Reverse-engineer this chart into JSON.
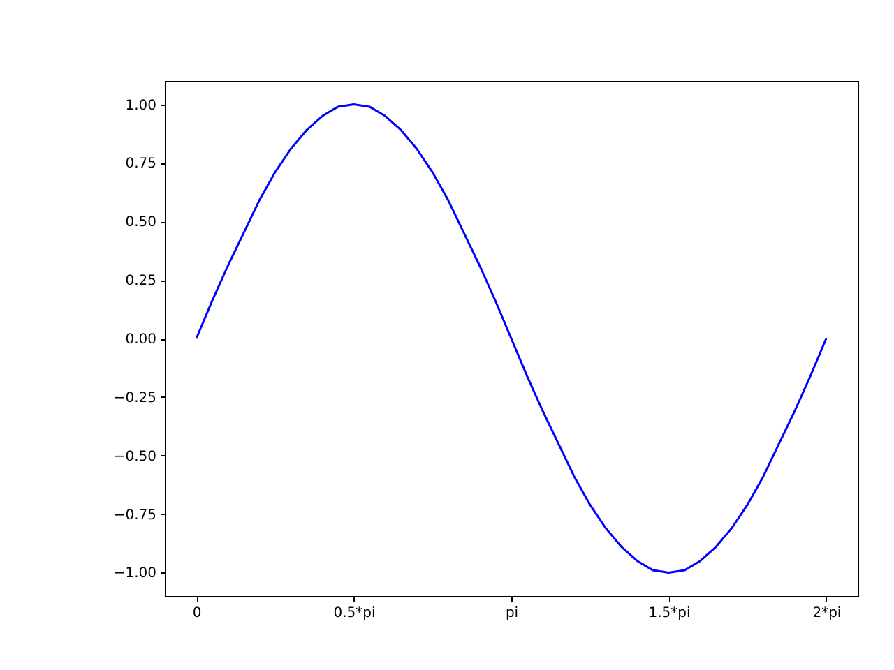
{
  "chart_data": {
    "type": "line",
    "color": "#0000ff",
    "marker": "none",
    "line_style": "solid",
    "grid": false,
    "x": [
      0,
      0.05,
      0.1,
      0.15,
      0.2,
      0.25,
      0.3,
      0.35,
      0.4,
      0.45,
      0.5,
      0.55,
      0.6,
      0.65,
      0.7,
      0.75,
      0.8,
      0.85,
      0.9,
      0.95,
      1,
      1.05,
      1.1,
      1.15,
      1.2,
      1.25,
      1.3,
      1.35,
      1.4,
      1.45,
      1.5,
      1.55,
      1.6,
      1.65,
      1.7,
      1.75,
      1.8,
      1.85,
      1.9,
      1.95,
      2
    ],
    "values": [
      0,
      0.16,
      0.31,
      0.45,
      0.59,
      0.71,
      0.81,
      0.89,
      0.95,
      0.99,
      1.0,
      0.99,
      0.95,
      0.89,
      0.81,
      0.71,
      0.59,
      0.45,
      0.31,
      0.16,
      0,
      -0.16,
      -0.31,
      -0.45,
      -0.59,
      -0.71,
      -0.81,
      -0.89,
      -0.95,
      -0.99,
      -1.0,
      -0.99,
      -0.95,
      -0.89,
      -0.81,
      -0.71,
      -0.59,
      -0.45,
      -0.31,
      -0.16,
      0
    ],
    "xlim": [
      -0.1,
      2.1
    ],
    "ylim": [
      -1.1,
      1.1
    ],
    "xticks": [
      0,
      {
        "value": 0.5,
        "label": "0.5*pi"
      },
      {
        "value": 1,
        "label": "pi"
      },
      {
        "value": 1.5,
        "label": "1.5*pi"
      },
      {
        "value": 2,
        "label": "2*pi"
      }
    ],
    "yticks": [
      {
        "value": -1,
        "label": "−1.00"
      },
      {
        "value": -0.75,
        "label": "−0.75"
      },
      {
        "value": -0.5,
        "label": "−0.50"
      },
      {
        "value": -0.25,
        "label": "−0.25"
      },
      {
        "value": 0,
        "label": "0.00"
      },
      {
        "value": 0.25,
        "label": "0.25"
      },
      {
        "value": 0.5,
        "label": "0.50"
      },
      {
        "value": 0.75,
        "label": "0.75"
      },
      {
        "value": 1,
        "label": "1.00"
      }
    ]
  }
}
